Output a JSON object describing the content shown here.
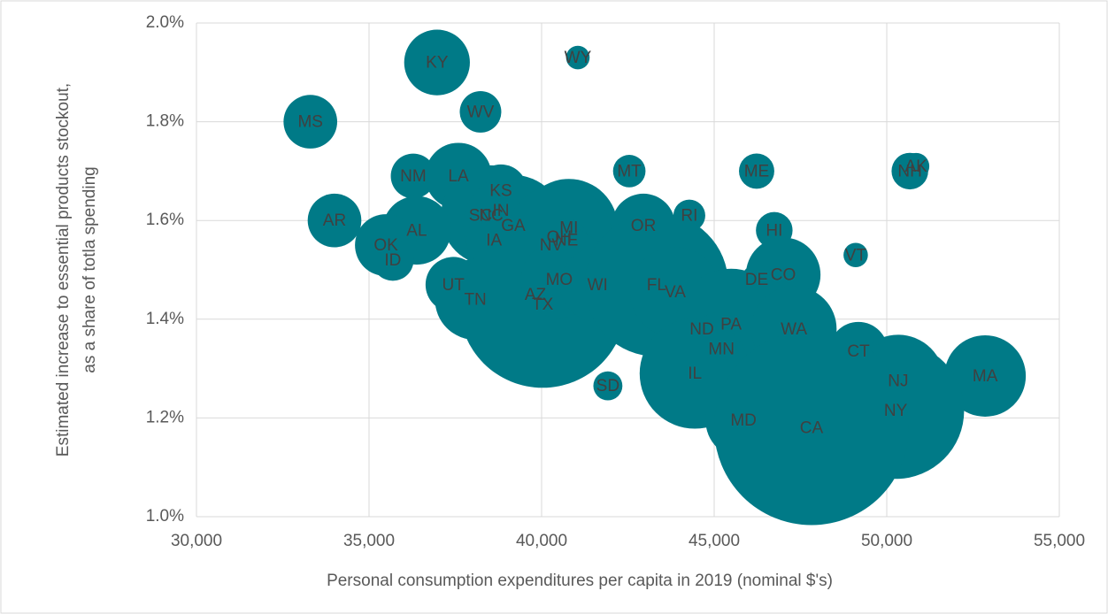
{
  "chart_data": {
    "type": "bubble",
    "xlabel": "Personal consumption expenditures per capita in 2019 (nominal $'s)",
    "ylabel": [
      "Estimated increase to essential products stockout,",
      "as a share of totla spending"
    ],
    "xlim": [
      30000,
      55000
    ],
    "ylim": [
      1.0,
      2.0
    ],
    "xticks": [
      {
        "value": 30000,
        "label": "30,000"
      },
      {
        "value": 35000,
        "label": "35,000"
      },
      {
        "value": 40000,
        "label": "40,000"
      },
      {
        "value": 45000,
        "label": "45,000"
      },
      {
        "value": 50000,
        "label": "50,000"
      },
      {
        "value": 55000,
        "label": "55,000"
      }
    ],
    "yticks": [
      {
        "value": 1.0,
        "label": "1.0%"
      },
      {
        "value": 1.2,
        "label": "1.2%"
      },
      {
        "value": 1.4,
        "label": "1.4%"
      },
      {
        "value": 1.6,
        "label": "1.6%"
      },
      {
        "value": 1.8,
        "label": "1.8%"
      },
      {
        "value": 2.0,
        "label": "2.0%"
      }
    ],
    "grid": true,
    "color": "#007a87",
    "labels": [
      "KY",
      "WY",
      "MS",
      "WV",
      "NM",
      "LA",
      "MT",
      "ME",
      "NH",
      "AK",
      "KS",
      "IN",
      "SC",
      "NC",
      "GA",
      "IA",
      "MI",
      "OH",
      "NE",
      "NV",
      "AR",
      "AL",
      "OK",
      "ID",
      "OR",
      "RI",
      "HI",
      "VT",
      "CO",
      "DE",
      "UT",
      "TN",
      "AZ",
      "TX",
      "MO",
      "WI",
      "FL",
      "VA",
      "ND",
      "PA",
      "MN",
      "WA",
      "IL",
      "CT",
      "SD",
      "NJ",
      "MA",
      "NY",
      "MD",
      "CA"
    ],
    "x": [
      36970,
      41050,
      33300,
      38230,
      36280,
      37590,
      42540,
      46230,
      50670,
      50850,
      38820,
      38820,
      38230,
      38540,
      39180,
      38620,
      40790,
      40510,
      40720,
      40280,
      34000,
      36380,
      35490,
      35690,
      42950,
      44280,
      46740,
      49100,
      47000,
      46230,
      37440,
      38080,
      39820,
      40030,
      40510,
      41620,
      43330,
      43870,
      44640,
      45490,
      45210,
      47310,
      44440,
      49180,
      41920,
      50330,
      52850,
      50260,
      45850,
      47820
    ],
    "values": [
      1.92,
      1.93,
      1.8,
      1.82,
      1.69,
      1.69,
      1.7,
      1.7,
      1.7,
      1.71,
      1.66,
      1.62,
      1.61,
      1.61,
      1.59,
      1.56,
      1.585,
      1.566,
      1.56,
      1.55,
      1.6,
      1.58,
      1.55,
      1.52,
      1.59,
      1.61,
      1.58,
      1.53,
      1.49,
      1.48,
      1.47,
      1.44,
      1.45,
      1.43,
      1.48,
      1.47,
      1.47,
      1.455,
      1.38,
      1.39,
      1.34,
      1.38,
      1.29,
      1.335,
      1.265,
      1.275,
      1.285,
      1.215,
      1.195,
      1.18
    ],
    "sizes": [
      4.5,
      0.58,
      3.0,
      1.8,
      2.1,
      4.6,
      1.1,
      1.3,
      1.4,
      0.73,
      2.9,
      6.7,
      5.1,
      10.5,
      10.6,
      3.2,
      10.0,
      11.7,
      1.9,
      3.1,
      3.0,
      4.9,
      4.0,
      1.8,
      4.2,
      1.06,
      1.4,
      0.62,
      5.8,
      0.97,
      3.2,
      6.8,
      7.3,
      29.0,
      6.1,
      5.8,
      21.5,
      8.5,
      0.76,
      12.8,
      5.6,
      7.6,
      12.7,
      3.6,
      0.88,
      8.9,
      6.9,
      19.5,
      6.0,
      39.5
    ]
  }
}
